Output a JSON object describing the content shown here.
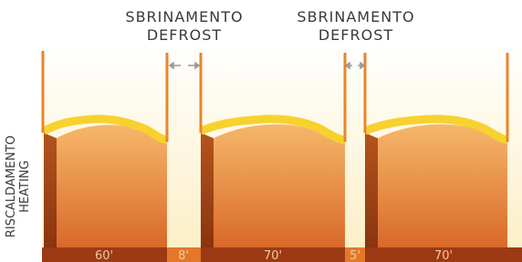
{
  "defrost_labels": [
    {
      "line1": "SBRINAMENTO",
      "line2": "DEFROST"
    },
    {
      "line1": "SBRINAMENTO",
      "line2": "DEFROST"
    }
  ],
  "axis_label": {
    "line1": "RISCALDAMENTO",
    "line2": "HEATING"
  },
  "timeline": [
    "60'",
    "8'",
    "70'",
    "5'",
    "70'"
  ]
}
